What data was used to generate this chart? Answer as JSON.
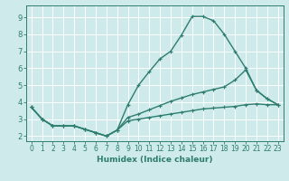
{
  "title": "",
  "xlabel": "Humidex (Indice chaleur)",
  "bg_color": "#ceeaea",
  "grid_color": "#ffffff",
  "line_color": "#2e7d6e",
  "xlim": [
    -0.5,
    23.5
  ],
  "ylim": [
    1.7,
    9.7
  ],
  "xticks": [
    0,
    1,
    2,
    3,
    4,
    5,
    6,
    7,
    8,
    9,
    10,
    11,
    12,
    13,
    14,
    15,
    16,
    17,
    18,
    19,
    20,
    21,
    22,
    23
  ],
  "yticks": [
    2,
    3,
    4,
    5,
    6,
    7,
    8,
    9
  ],
  "line1_x": [
    0,
    1,
    2,
    3,
    4,
    5,
    6,
    7,
    8,
    9,
    10,
    11,
    12,
    13,
    14,
    15,
    16,
    17,
    18,
    19,
    20,
    21,
    22,
    23
  ],
  "line1_y": [
    3.7,
    3.0,
    2.6,
    2.6,
    2.6,
    2.4,
    2.2,
    2.0,
    2.35,
    3.85,
    5.0,
    5.8,
    6.55,
    7.0,
    7.95,
    9.05,
    9.05,
    8.8,
    8.0,
    7.0,
    6.0,
    4.7,
    4.2,
    3.85
  ],
  "line2_x": [
    0,
    1,
    2,
    3,
    4,
    5,
    6,
    7,
    8,
    9,
    10,
    11,
    12,
    13,
    14,
    15,
    16,
    17,
    18,
    19,
    20,
    21,
    22,
    23
  ],
  "line2_y": [
    3.7,
    3.0,
    2.6,
    2.6,
    2.6,
    2.4,
    2.2,
    2.0,
    2.35,
    3.1,
    3.3,
    3.55,
    3.8,
    4.05,
    4.25,
    4.45,
    4.6,
    4.75,
    4.9,
    5.3,
    5.9,
    4.7,
    4.2,
    3.85
  ],
  "line3_x": [
    0,
    1,
    2,
    3,
    4,
    5,
    6,
    7,
    8,
    9,
    10,
    11,
    12,
    13,
    14,
    15,
    16,
    17,
    18,
    19,
    20,
    21,
    22,
    23
  ],
  "line3_y": [
    3.7,
    3.0,
    2.6,
    2.6,
    2.6,
    2.4,
    2.2,
    2.0,
    2.35,
    2.9,
    3.0,
    3.1,
    3.2,
    3.3,
    3.4,
    3.5,
    3.6,
    3.65,
    3.7,
    3.75,
    3.85,
    3.9,
    3.85,
    3.85
  ],
  "markersize": 3,
  "linewidth": 1.0,
  "tick_fontsize": 5.5,
  "xlabel_fontsize": 6.5
}
